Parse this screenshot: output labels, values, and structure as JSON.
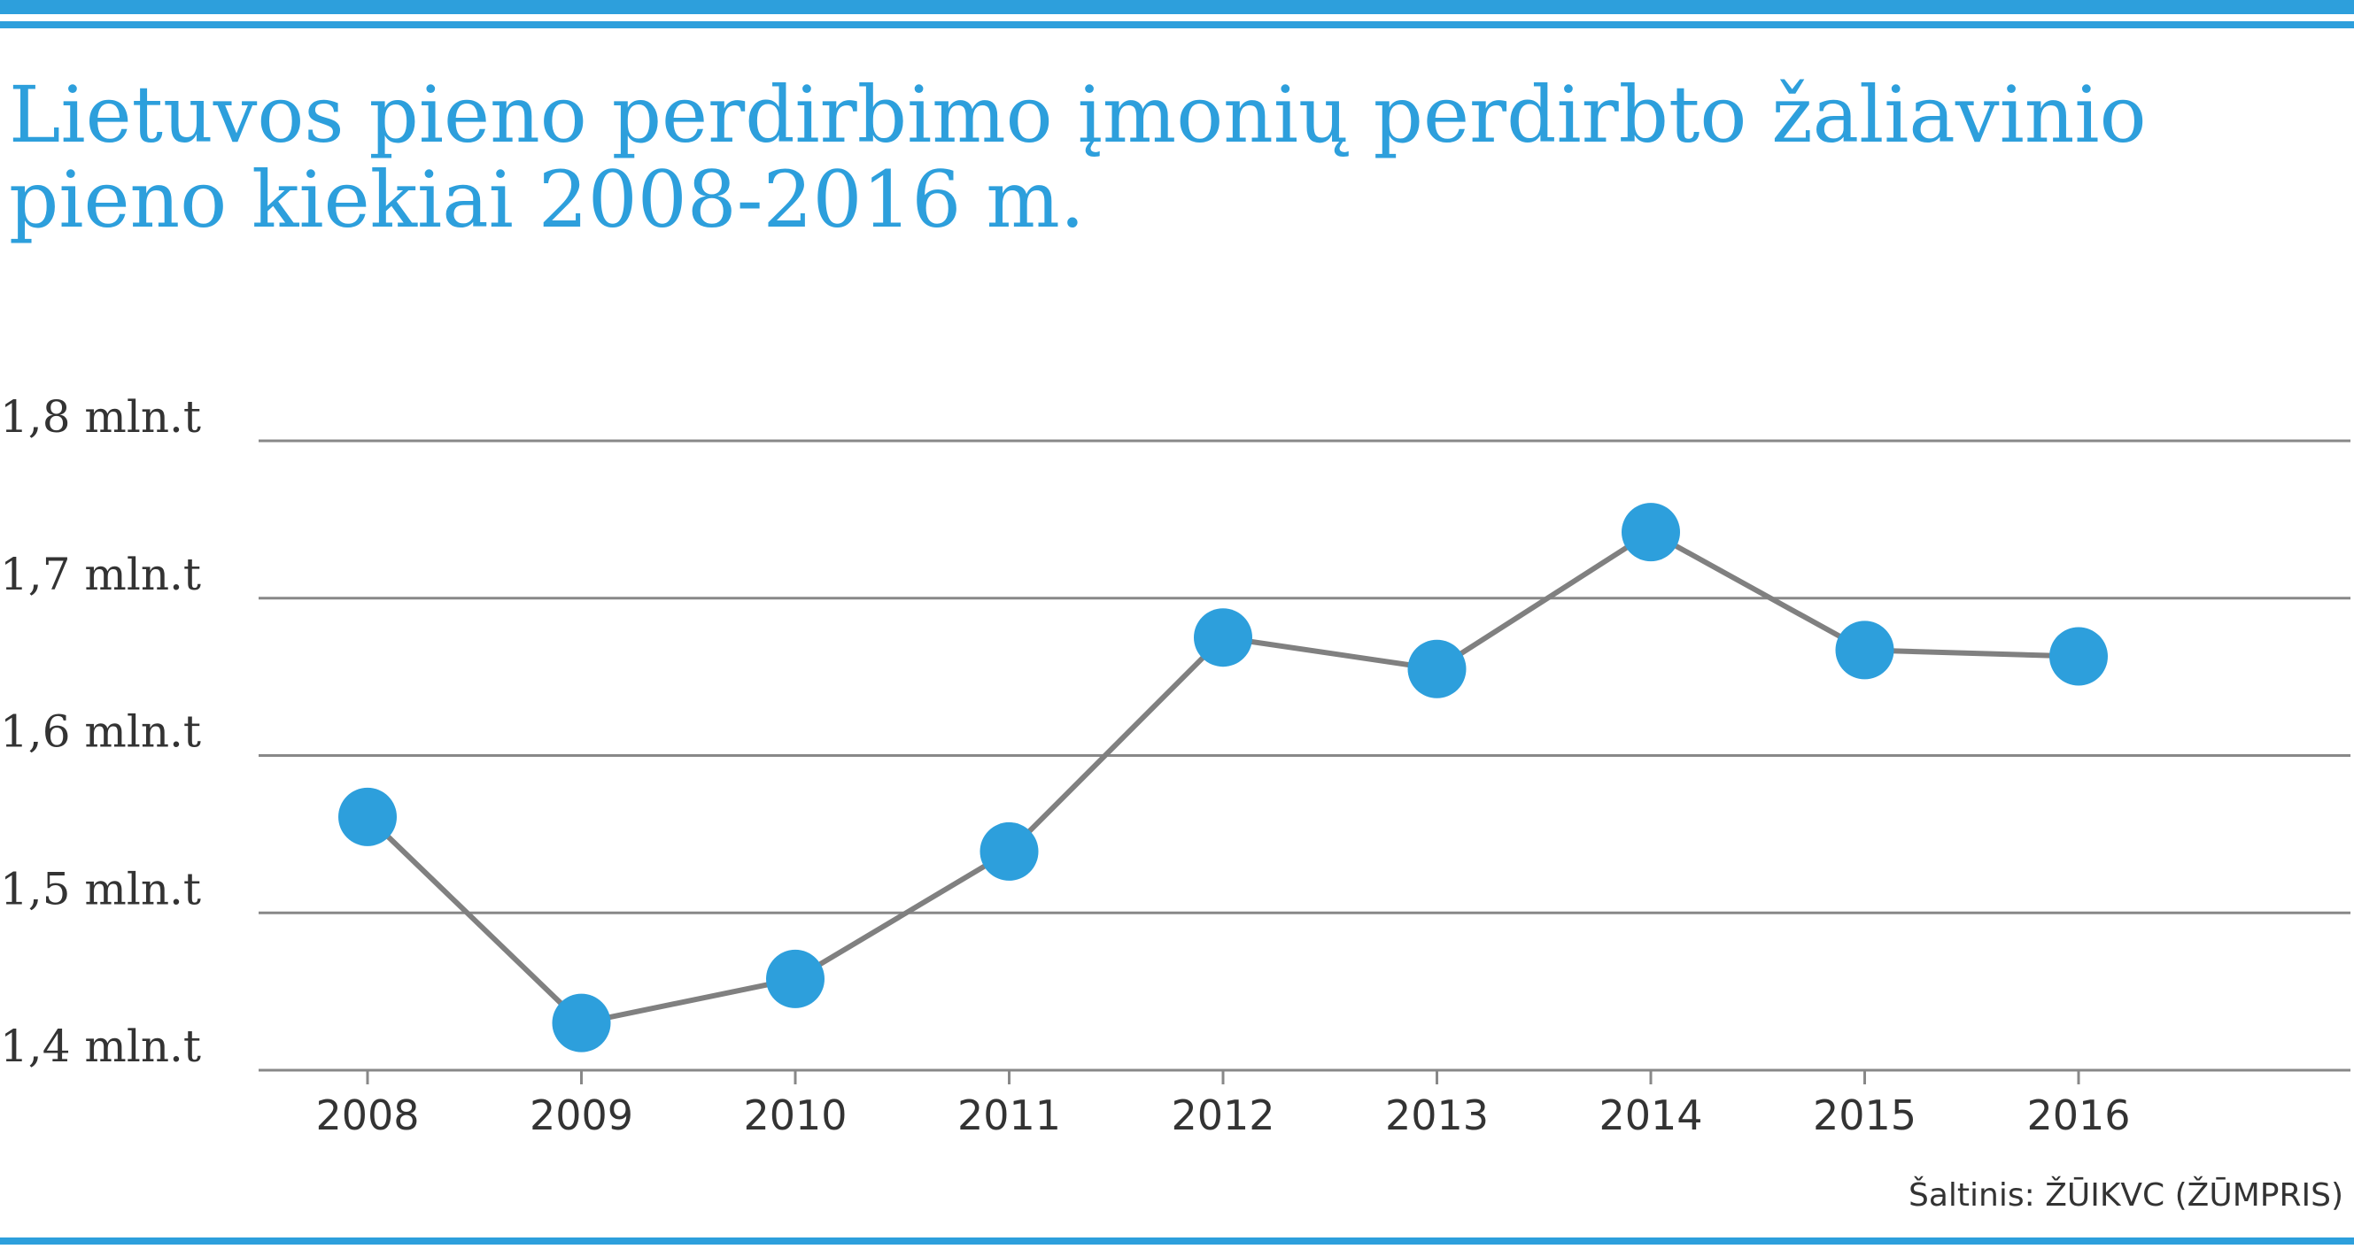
{
  "title_lines": [
    "Lietuvos pieno perdirbimo įmonių perdirbto žaliavinio",
    "pieno kiekiai 2008-2016 m."
  ],
  "source": "Šaltinis: ŽŪIKVC (ŽŪMPRIS)",
  "colors": {
    "accent": "#2d9fdc",
    "line": "#808080",
    "grid": "#888888",
    "text": "#333333"
  },
  "chart_data": {
    "type": "line",
    "title": "Lietuvos pieno perdirbimo įmonių perdirbto žaliavinio pieno kiekiai 2008-2016 m.",
    "categories": [
      "2008",
      "2009",
      "2010",
      "2011",
      "2012",
      "2013",
      "2014",
      "2015",
      "2016"
    ],
    "values": [
      1.561,
      1.43,
      1.458,
      1.539,
      1.675,
      1.655,
      1.742,
      1.667,
      1.663
    ],
    "unit": "mln.t",
    "ylim": [
      1.4,
      1.8
    ],
    "yticks": [
      1.8,
      1.7,
      1.6,
      1.5,
      1.4
    ],
    "ytick_labels": [
      "1,8 mln.t",
      "1,7 mln.t",
      "1,6 mln.t",
      "1,5 mln.t",
      "1,4 mln.t"
    ],
    "xlabel": "",
    "ylabel": "",
    "grid": true,
    "legend": "none"
  }
}
